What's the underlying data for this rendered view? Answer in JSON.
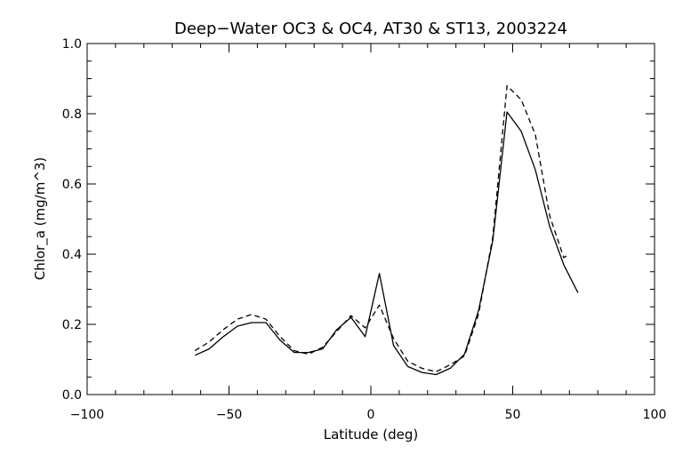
{
  "chart_data": {
    "type": "line",
    "title": "Deep−Water OC3 & OC4, AT30 & ST13, 2003224",
    "xlabel": "Latitude (deg)",
    "ylabel": "Chlor_a (mg/m^3)",
    "xlim": [
      -100,
      100
    ],
    "ylim": [
      0.0,
      1.0
    ],
    "xticks": [
      -100,
      -50,
      0,
      50,
      100
    ],
    "xtick_labels": [
      "−100",
      "−50",
      "0",
      "50",
      "100"
    ],
    "yticks": [
      0.0,
      0.2,
      0.4,
      0.6,
      0.8,
      1.0
    ],
    "ytick_labels": [
      "0.0",
      "0.2",
      "0.4",
      "0.6",
      "0.8",
      "1.0"
    ],
    "grid": false,
    "series": [
      {
        "style": "solid",
        "color": "#000000",
        "x": [
          -62,
          -57,
          -52,
          -47,
          -42,
          -37,
          -32,
          -27,
          -22,
          -17,
          -12,
          -7,
          -2,
          3,
          8,
          13,
          18,
          23,
          28,
          33,
          38,
          43,
          48,
          53,
          58,
          63,
          68,
          73
        ],
        "y": [
          0.112,
          0.13,
          0.165,
          0.195,
          0.205,
          0.205,
          0.155,
          0.12,
          0.12,
          0.13,
          0.185,
          0.22,
          0.165,
          0.345,
          0.14,
          0.08,
          0.063,
          0.057,
          0.075,
          0.115,
          0.24,
          0.44,
          0.805,
          0.75,
          0.64,
          0.48,
          0.37,
          0.29
        ]
      },
      {
        "style": "dashed",
        "color": "#000000",
        "x": [
          -62,
          -57,
          -52,
          -47,
          -42,
          -37,
          -32,
          -27,
          -22,
          -17,
          -12,
          -7,
          -2,
          3,
          8,
          13,
          18,
          23,
          28,
          33,
          38,
          43,
          48,
          53,
          58,
          63,
          68,
          70
        ],
        "y": [
          0.125,
          0.15,
          0.185,
          0.215,
          0.228,
          0.215,
          0.165,
          0.125,
          0.115,
          0.135,
          0.18,
          0.225,
          0.19,
          0.255,
          0.16,
          0.095,
          0.075,
          0.065,
          0.085,
          0.11,
          0.23,
          0.45,
          0.88,
          0.84,
          0.74,
          0.51,
          0.39,
          0.4
        ]
      }
    ]
  }
}
